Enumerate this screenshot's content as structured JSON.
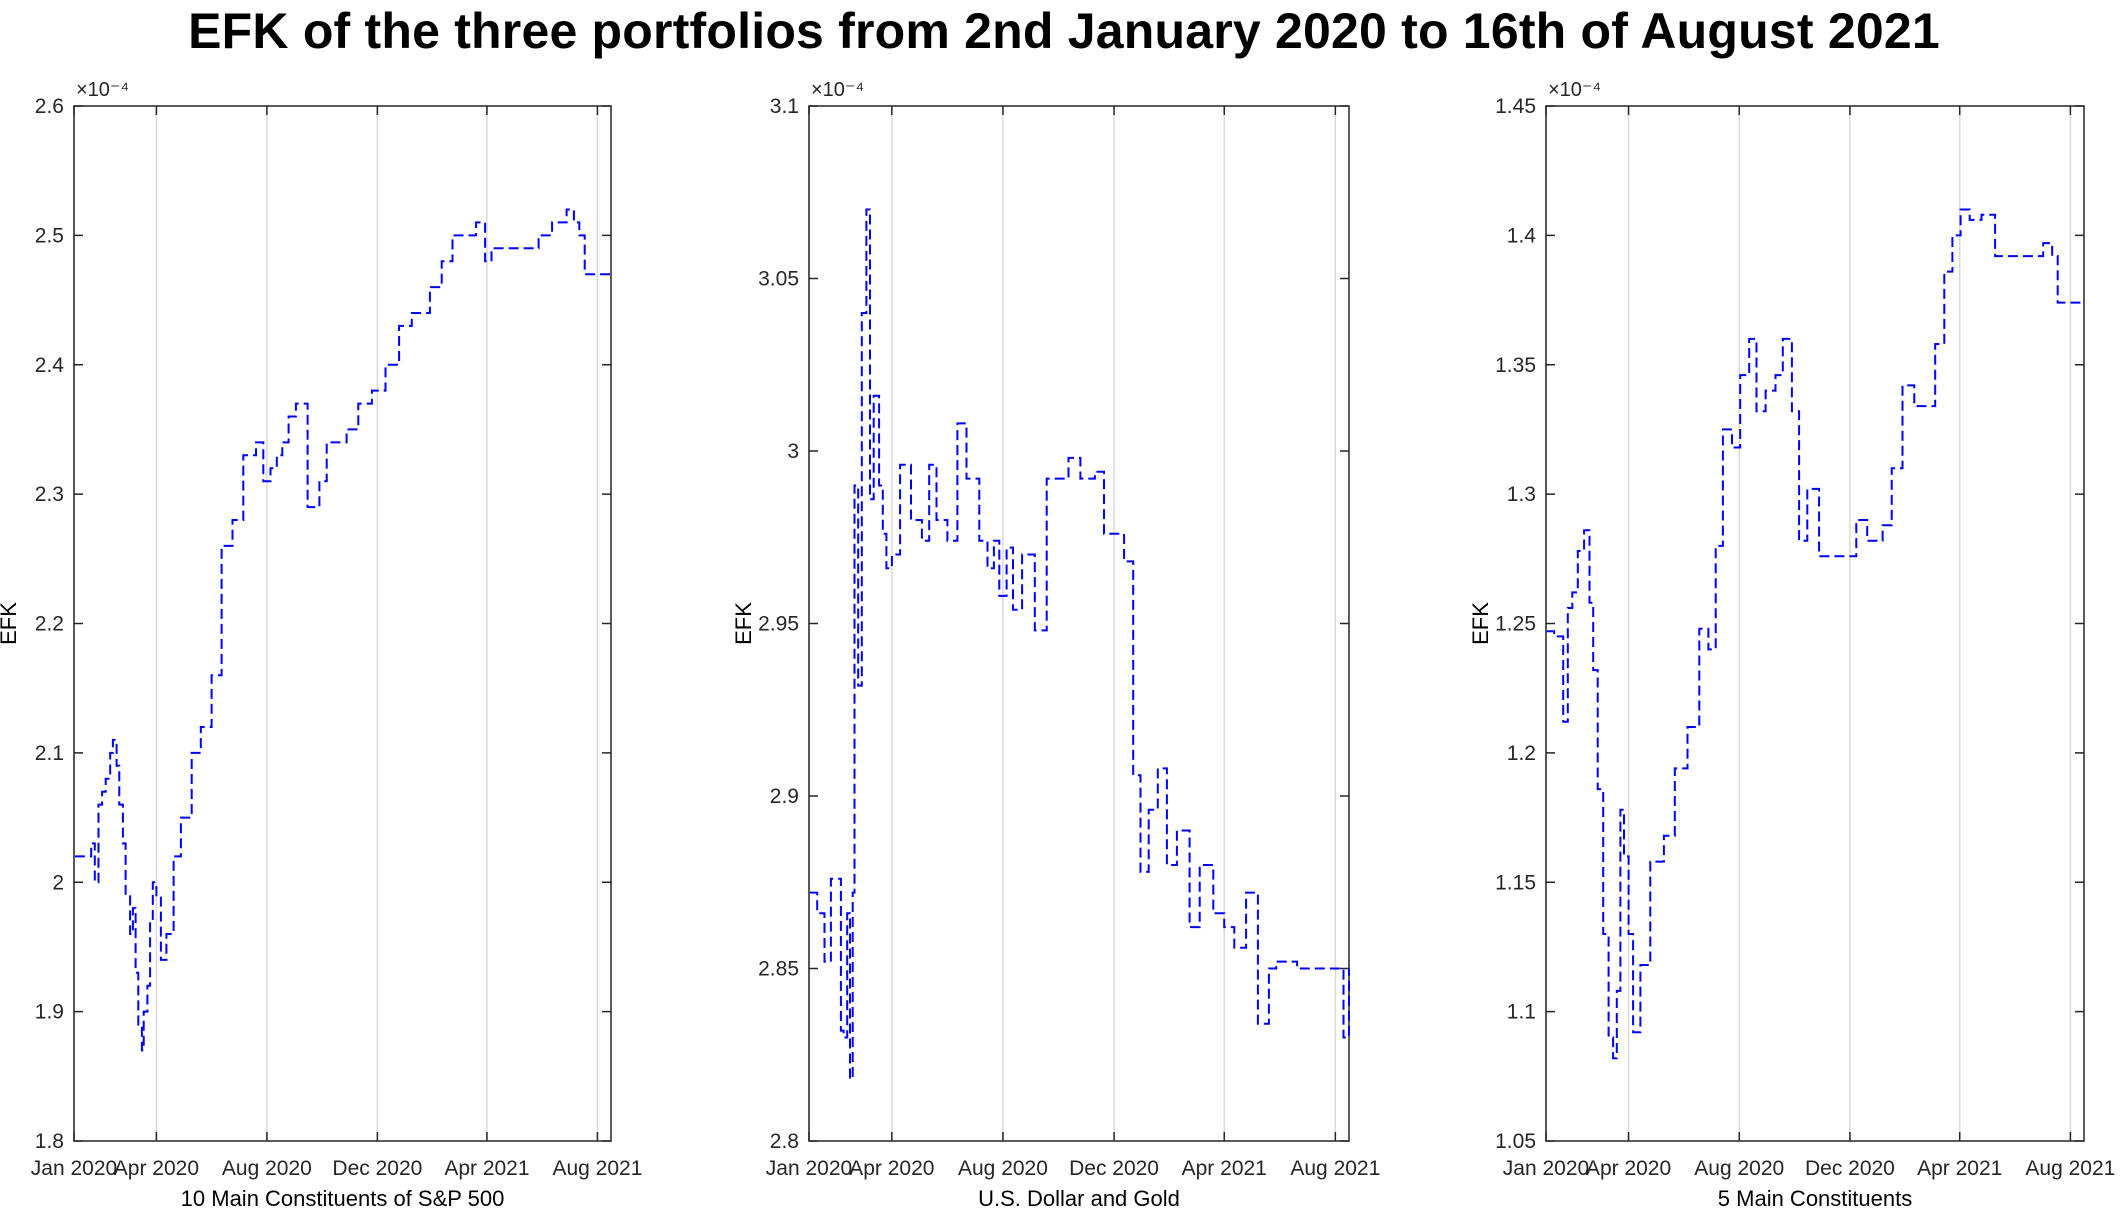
{
  "figure_title": "EFK of the three portfolios from 2nd January 2020 to 16th of August 2021",
  "colors": {
    "series": "#0000ff",
    "grid": "#d9d9d9",
    "axis": "#262626"
  },
  "chart_data": [
    {
      "type": "line",
      "title": "",
      "xlabel": "10 Main Constituents of S&P 500",
      "ylabel": "EFK",
      "y_exponent_label": "×10⁻⁴",
      "y_scale_factor": 0.0001,
      "xlim": [
        "2020-01-01",
        "2021-08-16"
      ],
      "ylim": [
        1.8,
        2.6
      ],
      "x_ticks": [
        "2020-01-01",
        "2020-04-01",
        "2020-08-01",
        "2020-12-01",
        "2021-04-01",
        "2021-08-01"
      ],
      "x_tick_labels": [
        "Jan 2020",
        "Apr 2020",
        "Aug 2020",
        "Dec 2020",
        "Apr 2021",
        "Aug 2021"
      ],
      "y_ticks": [
        1.8,
        1.9,
        2.0,
        2.1,
        2.2,
        2.3,
        2.4,
        2.5,
        2.6
      ],
      "y_tick_labels": [
        "1.8",
        "1.9",
        "2",
        "2.1",
        "2.2",
        "2.3",
        "2.4",
        "2.5",
        "2.6"
      ],
      "grid": "vertical",
      "line_style": "dashed",
      "series": [
        {
          "x": [
            "2020-01-02",
            "2020-01-12",
            "2020-01-20",
            "2020-01-24",
            "2020-01-28",
            "2020-02-01",
            "2020-02-05",
            "2020-02-10",
            "2020-02-13",
            "2020-02-17",
            "2020-02-20",
            "2020-02-24",
            "2020-02-27",
            "2020-03-03",
            "2020-03-06",
            "2020-03-09",
            "2020-03-12",
            "2020-03-16",
            "2020-03-18",
            "2020-03-22",
            "2020-03-25",
            "2020-03-28",
            "2020-04-01",
            "2020-04-06",
            "2020-04-12",
            "2020-04-20",
            "2020-04-28",
            "2020-05-10",
            "2020-05-20",
            "2020-06-01",
            "2020-06-12",
            "2020-06-24",
            "2020-07-06",
            "2020-07-20",
            "2020-07-28",
            "2020-08-05",
            "2020-08-12",
            "2020-08-18",
            "2020-08-25",
            "2020-09-02",
            "2020-09-10",
            "2020-09-15",
            "2020-09-22",
            "2020-09-28",
            "2020-10-06",
            "2020-10-15",
            "2020-10-28",
            "2020-11-10",
            "2020-11-25",
            "2020-12-10",
            "2020-12-25",
            "2021-01-08",
            "2021-01-18",
            "2021-01-28",
            "2021-02-10",
            "2021-02-22",
            "2021-03-06",
            "2021-03-20",
            "2021-03-30",
            "2021-04-06",
            "2021-04-20",
            "2021-05-10",
            "2021-05-28",
            "2021-06-12",
            "2021-06-28",
            "2021-07-06",
            "2021-07-12",
            "2021-07-18",
            "2021-07-28",
            "2021-08-16"
          ],
          "y": [
            2.02,
            2.02,
            2.03,
            2.0,
            2.06,
            2.07,
            2.08,
            2.1,
            2.11,
            2.09,
            2.06,
            2.03,
            1.99,
            1.96,
            1.98,
            1.93,
            1.89,
            1.87,
            1.9,
            1.92,
            1.97,
            2.0,
            1.99,
            1.94,
            1.96,
            2.02,
            2.05,
            2.1,
            2.12,
            2.16,
            2.26,
            2.28,
            2.33,
            2.34,
            2.31,
            2.32,
            2.33,
            2.34,
            2.36,
            2.37,
            2.37,
            2.29,
            2.29,
            2.31,
            2.34,
            2.34,
            2.35,
            2.37,
            2.38,
            2.4,
            2.43,
            2.44,
            2.44,
            2.46,
            2.48,
            2.5,
            2.5,
            2.51,
            2.48,
            2.49,
            2.49,
            2.49,
            2.5,
            2.51,
            2.52,
            2.51,
            2.5,
            2.47,
            2.47,
            2.47
          ]
        }
      ]
    },
    {
      "type": "line",
      "title": "",
      "xlabel": "U.S. Dollar and Gold",
      "ylabel": "EFK",
      "y_exponent_label": "×10⁻⁴",
      "y_scale_factor": 0.0001,
      "xlim": [
        "2020-01-01",
        "2021-08-16"
      ],
      "ylim": [
        2.8,
        3.1
      ],
      "x_ticks": [
        "2020-01-01",
        "2020-04-01",
        "2020-08-01",
        "2020-12-01",
        "2021-04-01",
        "2021-08-01"
      ],
      "x_tick_labels": [
        "Jan 2020",
        "Apr 2020",
        "Aug 2020",
        "Dec 2020",
        "Apr 2021",
        "Aug 2021"
      ],
      "y_ticks": [
        2.8,
        2.85,
        2.9,
        2.95,
        3.0,
        3.05,
        3.1
      ],
      "y_tick_labels": [
        "2.8",
        "2.85",
        "2.9",
        "2.95",
        "3",
        "3.05",
        "3.1"
      ],
      "grid": "vertical",
      "line_style": "dashed",
      "series": [
        {
          "x": [
            "2020-01-02",
            "2020-01-10",
            "2020-01-18",
            "2020-01-25",
            "2020-02-02",
            "2020-02-05",
            "2020-02-08",
            "2020-02-12",
            "2020-02-15",
            "2020-02-18",
            "2020-02-20",
            "2020-02-24",
            "2020-02-28",
            "2020-03-04",
            "2020-03-08",
            "2020-03-12",
            "2020-03-18",
            "2020-03-22",
            "2020-03-26",
            "2020-04-01",
            "2020-04-10",
            "2020-04-22",
            "2020-05-04",
            "2020-05-12",
            "2020-05-20",
            "2020-06-01",
            "2020-06-12",
            "2020-06-22",
            "2020-07-06",
            "2020-07-15",
            "2020-07-22",
            "2020-07-28",
            "2020-08-05",
            "2020-08-12",
            "2020-08-22",
            "2020-09-05",
            "2020-09-18",
            "2020-10-01",
            "2020-10-12",
            "2020-10-25",
            "2020-11-10",
            "2020-11-20",
            "2020-12-01",
            "2020-12-12",
            "2020-12-22",
            "2020-12-30",
            "2021-01-08",
            "2021-01-18",
            "2021-01-28",
            "2021-02-08",
            "2021-02-22",
            "2021-03-05",
            "2021-03-20",
            "2021-04-01",
            "2021-04-12",
            "2021-04-25",
            "2021-05-08",
            "2021-05-20",
            "2021-05-28",
            "2021-06-08",
            "2021-06-20",
            "2021-07-05",
            "2021-07-20",
            "2021-08-01",
            "2021-08-10",
            "2021-08-16"
          ],
          "y": [
            2.872,
            2.866,
            2.852,
            2.876,
            2.876,
            2.832,
            2.83,
            2.866,
            2.818,
            2.872,
            2.99,
            2.932,
            3.04,
            3.07,
            2.986,
            3.016,
            2.99,
            2.976,
            2.966,
            2.97,
            2.996,
            2.98,
            2.974,
            2.996,
            2.98,
            2.974,
            3.008,
            2.992,
            2.974,
            2.966,
            2.974,
            2.958,
            2.972,
            2.954,
            2.97,
            2.948,
            2.992,
            2.992,
            2.998,
            2.992,
            2.994,
            2.976,
            2.976,
            2.968,
            2.906,
            2.878,
            2.896,
            2.908,
            2.88,
            2.89,
            2.862,
            2.88,
            2.866,
            2.862,
            2.856,
            2.872,
            2.834,
            2.85,
            2.852,
            2.852,
            2.85,
            2.85,
            2.85,
            2.85,
            2.83,
            2.85
          ]
        }
      ]
    },
    {
      "type": "line",
      "title": "",
      "xlabel": "5 Main Constituents",
      "ylabel": "EFK",
      "y_exponent_label": "×10⁻⁴",
      "y_scale_factor": 0.0001,
      "xlim": [
        "2020-01-01",
        "2021-08-16"
      ],
      "ylim": [
        1.05,
        1.45
      ],
      "x_ticks": [
        "2020-01-01",
        "2020-04-01",
        "2020-08-01",
        "2020-12-01",
        "2021-04-01",
        "2021-08-01"
      ],
      "x_tick_labels": [
        "Jan 2020",
        "Apr 2020",
        "Aug 2020",
        "Dec 2020",
        "Apr 2021",
        "Aug 2021"
      ],
      "y_ticks": [
        1.05,
        1.1,
        1.15,
        1.2,
        1.25,
        1.3,
        1.35,
        1.4,
        1.45
      ],
      "y_tick_labels": [
        "1.05",
        "1.1",
        "1.15",
        "1.2",
        "1.25",
        "1.3",
        "1.35",
        "1.4",
        "1.45"
      ],
      "grid": "vertical",
      "line_style": "dashed",
      "series": [
        {
          "x": [
            "2020-01-02",
            "2020-01-10",
            "2020-01-20",
            "2020-01-25",
            "2020-01-30",
            "2020-02-05",
            "2020-02-12",
            "2020-02-18",
            "2020-02-22",
            "2020-02-27",
            "2020-03-04",
            "2020-03-10",
            "2020-03-15",
            "2020-03-19",
            "2020-03-23",
            "2020-03-27",
            "2020-04-01",
            "2020-04-06",
            "2020-04-14",
            "2020-04-25",
            "2020-05-10",
            "2020-05-22",
            "2020-06-05",
            "2020-06-18",
            "2020-06-28",
            "2020-07-06",
            "2020-07-14",
            "2020-07-24",
            "2020-08-02",
            "2020-08-12",
            "2020-08-20",
            "2020-08-30",
            "2020-09-10",
            "2020-09-18",
            "2020-09-28",
            "2020-10-06",
            "2020-10-15",
            "2020-10-28",
            "2020-11-10",
            "2020-11-28",
            "2020-12-08",
            "2020-12-20",
            "2021-01-06",
            "2021-01-16",
            "2021-01-28",
            "2021-02-10",
            "2021-02-25",
            "2021-03-05",
            "2021-03-15",
            "2021-03-24",
            "2021-04-02",
            "2021-04-12",
            "2021-04-25",
            "2021-05-10",
            "2021-06-01",
            "2021-06-20",
            "2021-07-02",
            "2021-07-12",
            "2021-07-18",
            "2021-08-16"
          ],
          "y": [
            1.247,
            1.245,
            1.212,
            1.256,
            1.262,
            1.278,
            1.286,
            1.258,
            1.232,
            1.186,
            1.13,
            1.09,
            1.082,
            1.108,
            1.178,
            1.16,
            1.13,
            1.092,
            1.118,
            1.158,
            1.168,
            1.194,
            1.21,
            1.248,
            1.24,
            1.28,
            1.325,
            1.318,
            1.346,
            1.36,
            1.332,
            1.34,
            1.346,
            1.36,
            1.332,
            1.282,
            1.302,
            1.276,
            1.276,
            1.276,
            1.29,
            1.282,
            1.288,
            1.31,
            1.342,
            1.334,
            1.334,
            1.358,
            1.386,
            1.4,
            1.41,
            1.406,
            1.408,
            1.392,
            1.392,
            1.392,
            1.397,
            1.392,
            1.374,
            1.374
          ]
        }
      ]
    }
  ]
}
